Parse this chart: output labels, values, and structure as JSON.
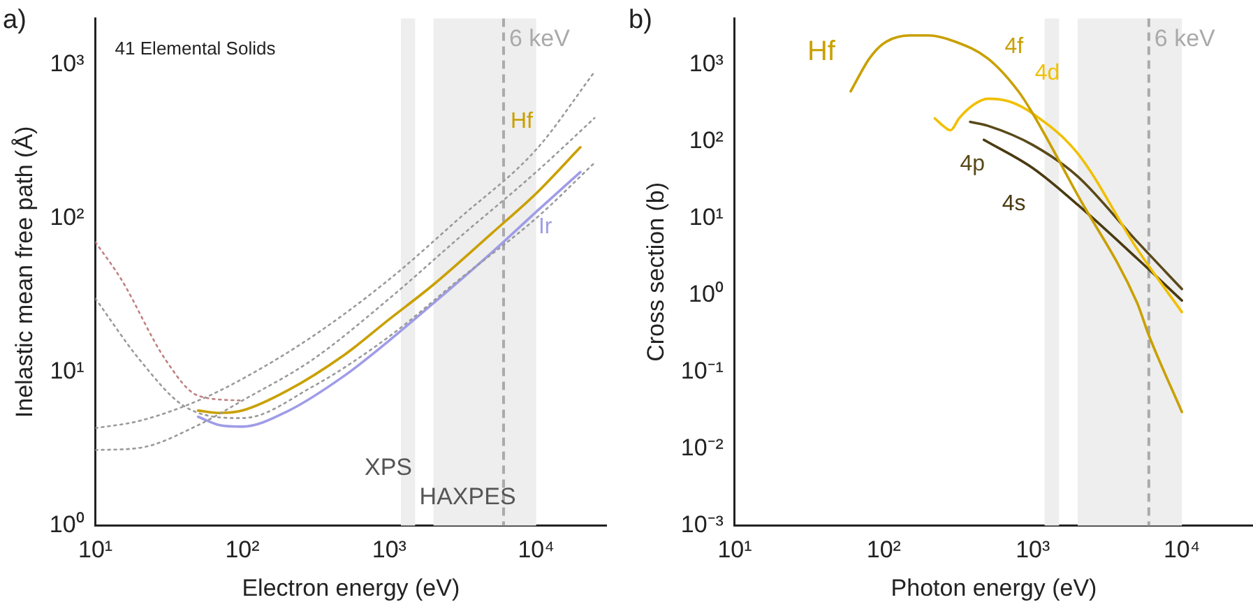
{
  "chart_data": [
    {
      "type": "line",
      "xlabel": "Electron energy (eV)",
      "ylabel": "Inelastic mean free path (Å)",
      "log": "xy",
      "legend": false,
      "grid": false,
      "line_style": "solid",
      "marker": "none",
      "xlim": [
        10,
        30000
      ],
      "ylim": [
        1,
        2000
      ],
      "xticks": [
        {
          "value": 10,
          "label": "10¹"
        },
        {
          "value": 100,
          "label": "10²"
        },
        {
          "value": 1000,
          "label": "10³"
        },
        {
          "value": 10000,
          "label": "10⁴"
        }
      ],
      "yticks": [
        {
          "value": 1,
          "label": "10⁰"
        },
        {
          "value": 10,
          "label": "10¹"
        },
        {
          "value": 100,
          "label": "10²"
        },
        {
          "value": 1000,
          "label": "10³"
        }
      ],
      "annotations": [
        "a)",
        "41 Elemental Solids"
      ],
      "bands": [
        {
          "axis": "x",
          "from": 1200,
          "to": 1500,
          "label": "XPS",
          "color": "#eeeeee"
        },
        {
          "axis": "x",
          "from": 2000,
          "to": 10000,
          "label": "HAXPES",
          "color": "#eeeeee"
        }
      ],
      "ref_lines": [
        {
          "axis": "x",
          "value": 6000,
          "label": "6 keV",
          "color": "#aaaaaa",
          "line_style": "dashed"
        }
      ],
      "series": [
        {
          "color": "#9a9a9a",
          "line_style": "dotted",
          "x": [
            10,
            20,
            50,
            100,
            300,
            1000,
            3000,
            10000,
            25000
          ],
          "values": [
            4.3,
            4.8,
            6.5,
            9,
            17,
            40,
            100,
            280,
            900
          ]
        },
        {
          "color": "#9a9a9a",
          "line_style": "dotted",
          "x": [
            10,
            20,
            50,
            100,
            300,
            1000,
            3000,
            10000,
            25000
          ],
          "values": [
            3.1,
            3.2,
            4.5,
            6.5,
            12,
            30,
            75,
            200,
            450
          ]
        },
        {
          "color": "#9a9a9a",
          "line_style": "dotted",
          "x": [
            10,
            20,
            40,
            100,
            300,
            1000,
            3000,
            10000,
            25000
          ],
          "values": [
            30,
            12,
            6,
            5,
            8,
            17,
            40,
            100,
            230
          ]
        },
        {
          "color": "#c08080",
          "line_style": "dotted",
          "x": [
            10,
            15,
            30,
            50,
            100
          ],
          "values": [
            70,
            40,
            12,
            7,
            6.5
          ]
        },
        {
          "name": "Hf",
          "color": "#c9a000",
          "x": [
            50,
            70,
            100,
            200,
            500,
            1000,
            2000,
            5000,
            10000,
            20000
          ],
          "values": [
            5.6,
            5.4,
            5.6,
            7.5,
            13,
            22,
            37,
            80,
            145,
            290
          ]
        },
        {
          "name": "Ir",
          "color": "#a09ce8",
          "x": [
            50,
            70,
            100,
            200,
            500,
            1000,
            2000,
            5000,
            10000,
            20000
          ],
          "values": [
            5.1,
            4.5,
            4.4,
            5.5,
            9.5,
            16,
            28,
            60,
            110,
            200
          ]
        }
      ]
    },
    {
      "type": "line",
      "xlabel": "Photon energy (eV)",
      "ylabel": "Cross section (b)",
      "log": "xy",
      "legend": false,
      "grid": false,
      "line_style": "solid",
      "marker": "none",
      "xlim": [
        10,
        30000
      ],
      "ylim": [
        0.001,
        4000
      ],
      "xticks": [
        {
          "value": 10,
          "label": "10¹"
        },
        {
          "value": 100,
          "label": "10²"
        },
        {
          "value": 1000,
          "label": "10³"
        },
        {
          "value": 10000,
          "label": "10⁴"
        }
      ],
      "yticks": [
        {
          "value": 0.001,
          "label": "10⁻³"
        },
        {
          "value": 0.01,
          "label": "10⁻²"
        },
        {
          "value": 0.1,
          "label": "10⁻¹"
        },
        {
          "value": 1,
          "label": "10⁰"
        },
        {
          "value": 10,
          "label": "10¹"
        },
        {
          "value": 100,
          "label": "10²"
        },
        {
          "value": 1000,
          "label": "10³"
        }
      ],
      "annotations": [
        "b)",
        "Hf"
      ],
      "bands": [
        {
          "axis": "x",
          "from": 1200,
          "to": 1500,
          "color": "#eeeeee"
        },
        {
          "axis": "x",
          "from": 2000,
          "to": 10000,
          "color": "#eeeeee"
        }
      ],
      "ref_lines": [
        {
          "axis": "x",
          "value": 6000,
          "label": "6 keV",
          "color": "#aaaaaa",
          "line_style": "dashed"
        }
      ],
      "series": [
        {
          "name": "4f",
          "color": "#c9a000",
          "x": [
            60,
            80,
            100,
            150,
            200,
            300,
            500,
            800,
            1000,
            2000,
            5000,
            6000,
            10000
          ],
          "values": [
            450,
            1200,
            1900,
            2400,
            2400,
            2000,
            1200,
            450,
            230,
            20,
            0.8,
            0.3,
            0.03
          ]
        },
        {
          "name": "4d",
          "color": "#f0c000",
          "x": [
            220,
            250,
            280,
            320,
            400,
            500,
            700,
            1000,
            2000,
            5000,
            10000
          ],
          "values": [
            200,
            160,
            140,
            200,
            300,
            360,
            330,
            230,
            70,
            4,
            0.6
          ]
        },
        {
          "name": "4p",
          "color": "#5a4a1a",
          "x": [
            380,
            500,
            1000,
            2000,
            5000,
            10000
          ],
          "values": [
            180,
            160,
            90,
            35,
            5,
            1.2
          ]
        },
        {
          "name": "4s",
          "color": "#4a3a10",
          "x": [
            470,
            1000,
            2000,
            5000,
            10000
          ],
          "values": [
            105,
            45,
            15,
            3,
            0.85
          ]
        }
      ]
    }
  ]
}
